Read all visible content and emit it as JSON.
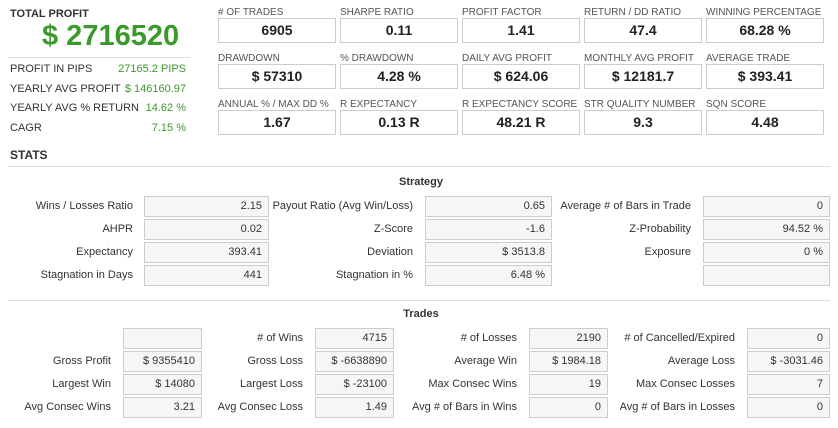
{
  "summary": {
    "title": "TOTAL PROFIT",
    "value": "$ 2716520",
    "rows": [
      {
        "label": "PROFIT IN PIPS",
        "value": "27165.2 PIPS"
      },
      {
        "label": "YEARLY AVG PROFIT",
        "value": "$ 146160.97"
      },
      {
        "label": "YEARLY AVG % RETURN",
        "value": "14.62 %"
      },
      {
        "label": "CAGR",
        "value": "7.15 %"
      }
    ]
  },
  "metrics": [
    [
      {
        "label": "# OF TRADES",
        "value": "6905"
      },
      {
        "label": "SHARPE RATIO",
        "value": "0.11"
      },
      {
        "label": "PROFIT FACTOR",
        "value": "1.41"
      },
      {
        "label": "RETURN / DD RATIO",
        "value": "47.4"
      },
      {
        "label": "WINNING PERCENTAGE",
        "value": "68.28 %"
      }
    ],
    [
      {
        "label": "DRAWDOWN",
        "value": "$ 57310"
      },
      {
        "label": "% DRAWDOWN",
        "value": "4.28 %"
      },
      {
        "label": "DAILY AVG PROFIT",
        "value": "$ 624.06"
      },
      {
        "label": "MONTHLY AVG PROFIT",
        "value": "$ 12181.7"
      },
      {
        "label": "AVERAGE TRADE",
        "value": "$ 393.41"
      }
    ],
    [
      {
        "label": "ANNUAL % / MAX DD %",
        "value": "1.67"
      },
      {
        "label": "R EXPECTANCY",
        "value": "0.13 R"
      },
      {
        "label": "R EXPECTANCY SCORE",
        "value": "48.21 R"
      },
      {
        "label": "STR QUALITY NUMBER",
        "value": "9.3"
      },
      {
        "label": "SQN SCORE",
        "value": "4.48"
      }
    ]
  ],
  "stats_title": "STATS",
  "strategy": {
    "title": "Strategy",
    "rows": [
      [
        {
          "label": "Wins / Losses Ratio",
          "value": "2.15"
        },
        {
          "label": "Payout Ratio (Avg Win/Loss)",
          "value": "0.65"
        },
        {
          "label": "Average # of Bars in Trade",
          "value": "0"
        }
      ],
      [
        {
          "label": "AHPR",
          "value": "0.02"
        },
        {
          "label": "Z-Score",
          "value": "-1.6"
        },
        {
          "label": "Z-Probability",
          "value": "94.52 %"
        }
      ],
      [
        {
          "label": "Expectancy",
          "value": "393.41"
        },
        {
          "label": "Deviation",
          "value": "$ 3513.8"
        },
        {
          "label": "Exposure",
          "value": "0 %"
        }
      ],
      [
        {
          "label": "Stagnation in Days",
          "value": "441"
        },
        {
          "label": "Stagnation in %",
          "value": "6.48 %"
        },
        null
      ]
    ]
  },
  "trades": {
    "title": "Trades",
    "rows": [
      [
        null,
        {
          "label": "# of Wins",
          "value": "4715"
        },
        {
          "label": "# of Losses",
          "value": "2190"
        },
        {
          "label": "# of Cancelled/Expired",
          "value": "0"
        }
      ],
      [
        {
          "label": "Gross Profit",
          "value": "$ 9355410"
        },
        {
          "label": "Gross Loss",
          "value": "$ -6638890"
        },
        {
          "label": "Average Win",
          "value": "$ 1984.18"
        },
        {
          "label": "Average Loss",
          "value": "$ -3031.46"
        }
      ],
      [
        {
          "label": "Largest Win",
          "value": "$ 14080"
        },
        {
          "label": "Largest Loss",
          "value": "$ -23100"
        },
        {
          "label": "Max Consec Wins",
          "value": "19"
        },
        {
          "label": "Max Consec Losses",
          "value": "7"
        }
      ],
      [
        {
          "label": "Avg Consec Wins",
          "value": "3.21"
        },
        {
          "label": "Avg Consec Loss",
          "value": "1.49"
        },
        {
          "label": "Avg # of Bars in Wins",
          "value": "0"
        },
        {
          "label": "Avg # of Bars in Losses",
          "value": "0"
        }
      ]
    ]
  }
}
